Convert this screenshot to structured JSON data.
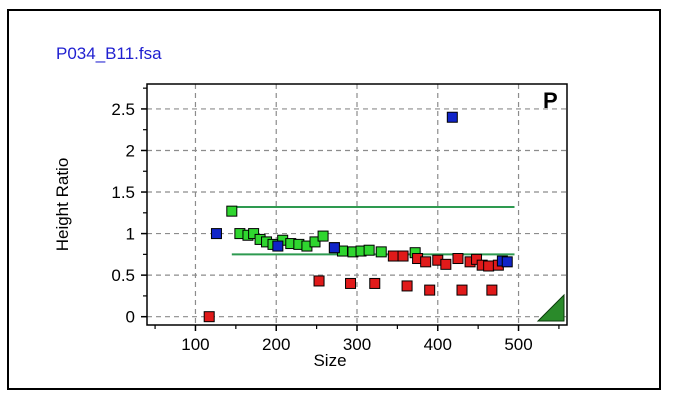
{
  "window": {
    "file_title": "P034_B11.fsa"
  },
  "chart_data": {
    "type": "scatter",
    "xlabel": "Size",
    "ylabel": "Height Ratio",
    "corner_label": "P",
    "xlim": [
      40,
      560
    ],
    "ylim": [
      -0.1,
      2.8
    ],
    "x_ticks": [
      100,
      200,
      300,
      400,
      500
    ],
    "y_ticks": [
      0,
      0.5,
      1,
      1.5,
      2,
      2.5
    ],
    "grid": true,
    "colors": {
      "green": "#2fd62f",
      "red": "#e01a1a",
      "blue": "#1024c8",
      "line": "#2e9a50",
      "marker": "#2a8a2a"
    },
    "threshold_lines": [
      {
        "y": 1.32,
        "x_start": 145,
        "x_end": 495
      },
      {
        "y": 0.75,
        "x_start": 145,
        "x_end": 495
      }
    ],
    "series": [
      {
        "color": "green",
        "points": [
          [
            145,
            1.27
          ],
          [
            155,
            1.0
          ],
          [
            165,
            0.98
          ],
          [
            172,
            1.0
          ],
          [
            180,
            0.93
          ],
          [
            188,
            0.9
          ],
          [
            196,
            0.87
          ],
          [
            208,
            0.92
          ],
          [
            218,
            0.88
          ],
          [
            228,
            0.87
          ],
          [
            238,
            0.85
          ],
          [
            248,
            0.9
          ],
          [
            258,
            0.97
          ],
          [
            272,
            0.83
          ],
          [
            282,
            0.79
          ],
          [
            295,
            0.78
          ],
          [
            305,
            0.79
          ],
          [
            315,
            0.8
          ],
          [
            330,
            0.78
          ],
          [
            372,
            0.77
          ]
        ]
      },
      {
        "color": "red",
        "points": [
          [
            117,
            0.0
          ],
          [
            253,
            0.43
          ],
          [
            292,
            0.4
          ],
          [
            322,
            0.4
          ],
          [
            345,
            0.73
          ],
          [
            357,
            0.73
          ],
          [
            362,
            0.37
          ],
          [
            375,
            0.7
          ],
          [
            385,
            0.66
          ],
          [
            390,
            0.32
          ],
          [
            400,
            0.68
          ],
          [
            410,
            0.63
          ],
          [
            425,
            0.7
          ],
          [
            430,
            0.32
          ],
          [
            440,
            0.66
          ],
          [
            448,
            0.69
          ],
          [
            455,
            0.62
          ],
          [
            463,
            0.61
          ],
          [
            467,
            0.32
          ],
          [
            475,
            0.62
          ]
        ]
      },
      {
        "color": "blue",
        "points": [
          [
            126,
            1.0
          ],
          [
            202,
            0.85
          ],
          [
            272,
            0.83
          ],
          [
            418,
            2.4
          ],
          [
            480,
            0.67
          ],
          [
            486,
            0.66
          ]
        ]
      }
    ]
  }
}
